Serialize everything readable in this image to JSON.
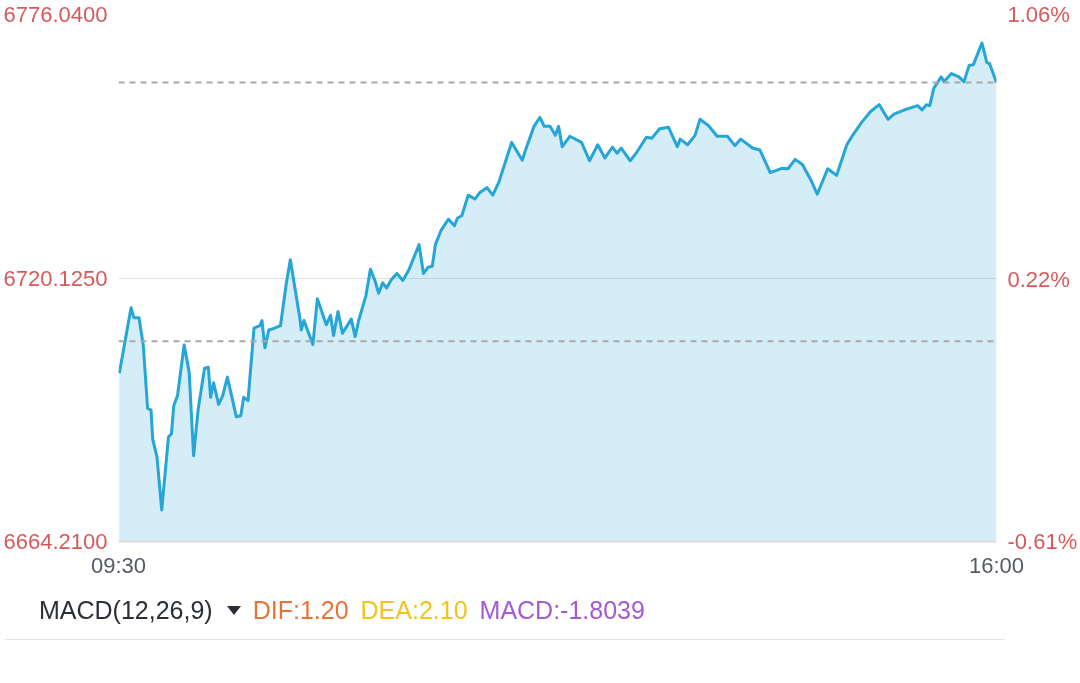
{
  "chart_data": [
    {
      "type": "area",
      "color": "#26a5d7",
      "x": [
        9.506,
        9.593,
        9.614,
        9.652,
        9.684,
        9.715,
        9.741,
        9.753,
        9.785,
        9.82,
        9.87,
        9.892,
        9.909,
        9.937,
        9.986,
        10.023,
        10.056,
        10.089,
        10.137,
        10.165,
        10.182,
        10.204,
        10.241,
        10.272,
        10.306,
        10.372,
        10.405,
        10.427,
        10.459,
        10.503,
        10.547,
        10.562,
        10.584,
        10.612,
        10.656,
        10.699,
        10.743,
        10.772,
        10.842,
        10.853,
        10.873,
        10.939,
        10.972,
        11.005,
        11.038,
        11.07,
        11.092,
        11.125,
        11.158,
        11.223,
        11.252,
        11.278,
        11.332,
        11.365,
        11.398,
        11.426,
        11.456,
        11.485,
        11.518,
        11.561,
        11.605,
        11.649,
        11.725,
        11.758,
        11.791,
        11.823,
        11.846,
        11.889,
        11.943,
        11.987,
        12.009,
        12.042,
        12.089,
        12.139,
        12.173,
        12.228,
        12.271,
        12.315,
        12.358,
        12.411,
        12.489,
        12.522,
        12.576,
        12.62,
        12.652,
        12.696,
        12.734,
        12.758,
        12.785,
        12.841,
        12.928,
        12.987,
        13.048,
        13.101,
        13.157,
        13.19,
        13.222,
        13.288,
        13.332,
        13.408,
        13.449,
        13.506,
        13.572,
        13.637,
        13.658,
        13.713,
        13.768,
        13.805,
        13.867,
        13.932,
        14.008,
        14.063,
        14.106,
        14.194,
        14.248,
        14.325,
        14.411,
        14.456,
        14.51,
        14.563,
        14.63,
        14.673,
        14.75,
        14.816,
        14.892,
        14.935,
        15.0,
        15.066,
        15.132,
        15.197,
        15.241,
        15.329,
        15.416,
        15.449,
        15.481,
        15.506,
        15.536,
        15.59,
        15.612,
        15.666,
        15.722,
        15.759,
        15.797,
        15.829,
        15.892,
        15.928,
        15.949,
        16.0
      ],
      "values": [
        6699.9,
        6713.8,
        6711.7,
        6711.7,
        6705.7,
        6692.5,
        6692.1,
        6686.0,
        6682.1,
        6670.9,
        6686.4,
        6687.1,
        6693.0,
        6695.2,
        6705.9,
        6700.2,
        6682.4,
        6692.1,
        6701.0,
        6701.2,
        6694.8,
        6697.9,
        6693.3,
        6695.2,
        6699.1,
        6690.7,
        6690.9,
        6694.8,
        6694.1,
        6709.5,
        6710.0,
        6711.1,
        6705.3,
        6709.1,
        6709.5,
        6710.0,
        6719.1,
        6724.0,
        6711.7,
        6709.1,
        6711.1,
        6706.0,
        6715.7,
        6713.0,
        6710.2,
        6712.2,
        6707.9,
        6713.0,
        6708.4,
        6711.4,
        6707.7,
        6711.1,
        6716.4,
        6722.0,
        6719.6,
        6716.9,
        6719.1,
        6718.0,
        6719.7,
        6721.1,
        6719.6,
        6721.8,
        6727.2,
        6721.1,
        6722.4,
        6722.6,
        6727.2,
        6730.3,
        6732.6,
        6731.2,
        6732.8,
        6733.4,
        6737.7,
        6736.9,
        6738.2,
        6739.3,
        6737.7,
        6740.4,
        6744.2,
        6748.9,
        6745.1,
        6748.0,
        6752.3,
        6754.2,
        6752.3,
        6752.3,
        6750.4,
        6752.3,
        6748.0,
        6750.2,
        6748.9,
        6745.0,
        6748.4,
        6745.6,
        6747.9,
        6746.6,
        6747.7,
        6745.0,
        6746.6,
        6750.0,
        6749.8,
        6751.8,
        6752.1,
        6748.0,
        6749.6,
        6748.4,
        6750.4,
        6753.8,
        6752.5,
        6750.2,
        6750.2,
        6748.2,
        6749.6,
        6747.7,
        6747.3,
        6742.5,
        6743.4,
        6743.3,
        6745.3,
        6744.2,
        6740.7,
        6737.9,
        6743.3,
        6741.9,
        6748.4,
        6750.4,
        6753.1,
        6755.4,
        6756.9,
        6753.8,
        6754.9,
        6755.9,
        6756.7,
        6755.8,
        6756.9,
        6756.7,
        6760.4,
        6762.8,
        6761.8,
        6763.5,
        6762.8,
        6761.8,
        6765.2,
        6765.4,
        6770.0,
        6765.9,
        6765.6,
        6761.6
      ],
      "xlim": [
        9.5,
        16
      ],
      "xticks": [
        {
          "value": 9.5,
          "label": "09:30"
        },
        {
          "value": 16,
          "label": "16:00"
        }
      ],
      "ylim": [
        6664.21,
        6776.04
      ],
      "yticks": [
        {
          "value": 6664.21,
          "label": "6664.2100"
        },
        {
          "value": 6720.125,
          "label": "6720.1250"
        },
        {
          "value": 6776.04,
          "label": "6776.0400"
        }
      ],
      "y2lim": [
        -0.61,
        1.06
      ],
      "y2ticks": [
        {
          "value": -0.61,
          "label": "-0.61%"
        },
        {
          "value": 0.22,
          "label": "0.22%"
        },
        {
          "value": 1.06,
          "label": "1.06%"
        }
      ],
      "grid": "y",
      "ref_lines": [
        {
          "axis": "y",
          "value": 6706.7,
          "color": "#a8a8a8",
          "line_style": "dashed"
        },
        {
          "axis": "y",
          "value": 6761.6,
          "color": "#a8a8a8",
          "line_style": "dashed"
        }
      ]
    },
    {
      "type": "other",
      "title": "MACD(12,26,9)",
      "annotations": [
        "DIF:1.20",
        "DEA:2.10",
        "MACD:-1.8039"
      ]
    }
  ]
}
